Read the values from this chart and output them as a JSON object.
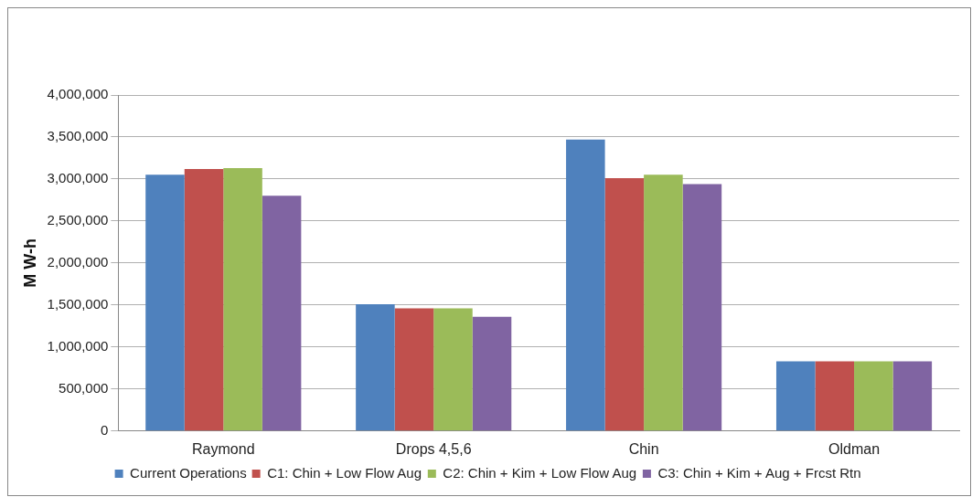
{
  "chart_data": {
    "type": "bar",
    "ylabel": "M W-h",
    "categories": [
      "Raymond",
      "Drops 4,5,6",
      "Chin",
      "Oldman"
    ],
    "series": [
      {
        "name": "Current Operations",
        "color": "#4f81bd",
        "values": [
          3050000,
          1510000,
          3470000,
          830000
        ]
      },
      {
        "name": "C1: Chin + Low Flow Aug",
        "color": "#c0504d",
        "values": [
          3120000,
          1460000,
          3010000,
          830000
        ]
      },
      {
        "name": "C2: Chin + Kim + Low Flow Aug",
        "color": "#9bbb59",
        "values": [
          3130000,
          1460000,
          3050000,
          830000
        ]
      },
      {
        "name": "C3: Chin + Kim + Aug + Frcst Rtn",
        "color": "#8064a2",
        "values": [
          2800000,
          1360000,
          2940000,
          830000
        ]
      }
    ],
    "ylim": [
      0,
      4000000
    ],
    "yticks": [
      {
        "value": 0,
        "label": "0"
      },
      {
        "value": 500000,
        "label": "500,000"
      },
      {
        "value": 1000000,
        "label": "1,000,000"
      },
      {
        "value": 1500000,
        "label": "1,500,000"
      },
      {
        "value": 2000000,
        "label": "2,000,000"
      },
      {
        "value": 2500000,
        "label": "2,500,000"
      },
      {
        "value": 3000000,
        "label": "3,000,000"
      },
      {
        "value": 3500000,
        "label": "3,500,000"
      },
      {
        "value": 4000000,
        "label": "4,000,000"
      }
    ],
    "grid": "y",
    "legend": "bottom"
  }
}
